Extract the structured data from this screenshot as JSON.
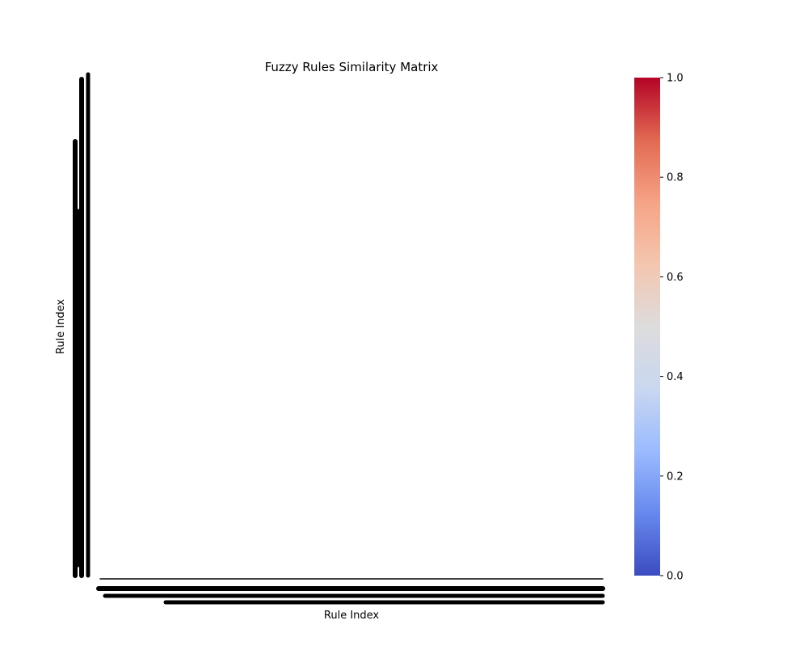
{
  "chart_data": {
    "type": "heatmap",
    "title": "Fuzzy Rules Similarity Matrix",
    "xlabel": "Rule Index",
    "ylabel": "Rule Index",
    "colormap": "coolwarm",
    "colormap_stops": [
      "#3b4cc0",
      "#6788ee",
      "#9abbff",
      "#c9d7f0",
      "#dddcdc",
      "#f4c6af",
      "#f6a385",
      "#e26952",
      "#b40426"
    ],
    "colorbar_range": [
      0.0,
      1.0
    ],
    "colorbar_ticks": [
      "0.0",
      "0.2",
      "0.4",
      "0.6",
      "0.8",
      "1.0"
    ],
    "cells_rendered": "blank",
    "tick_labels_legible": false
  }
}
